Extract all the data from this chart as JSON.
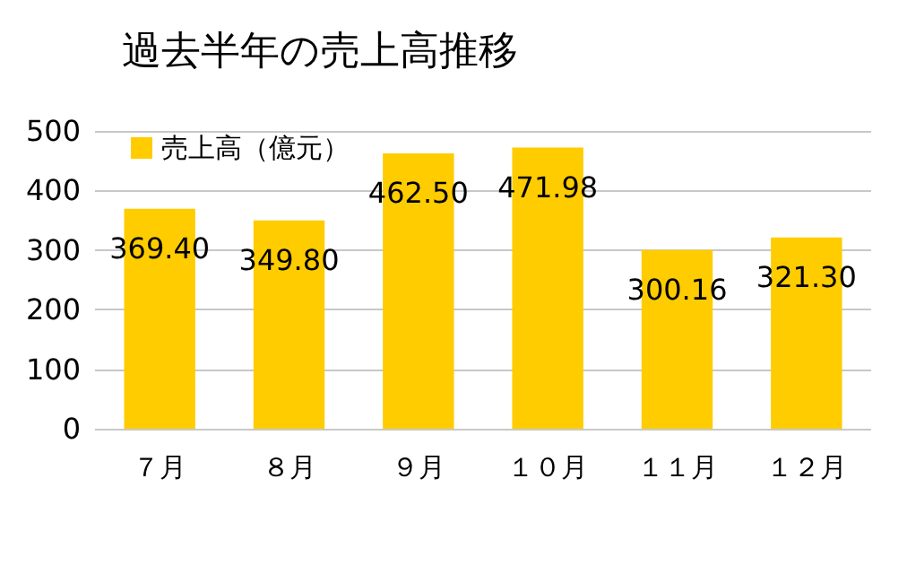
{
  "chart_data": {
    "type": "bar",
    "title": "過去半年の売上高推移",
    "categories": [
      "７月",
      "８月",
      "９月",
      "１０月",
      "１１月",
      "１２月"
    ],
    "series": [
      {
        "name": "売上高（億元）",
        "color": "#ffcc00",
        "values": [
          369.4,
          349.8,
          462.5,
          471.98,
          300.16,
          321.3
        ],
        "value_labels": [
          "369.40",
          "349.80",
          "462.50",
          "471.98",
          "300.16",
          "321.30"
        ]
      }
    ],
    "ylim": [
      0,
      500
    ],
    "yticks": [
      0,
      100,
      200,
      300,
      400,
      500
    ],
    "grid": "y",
    "legend": "top left"
  }
}
